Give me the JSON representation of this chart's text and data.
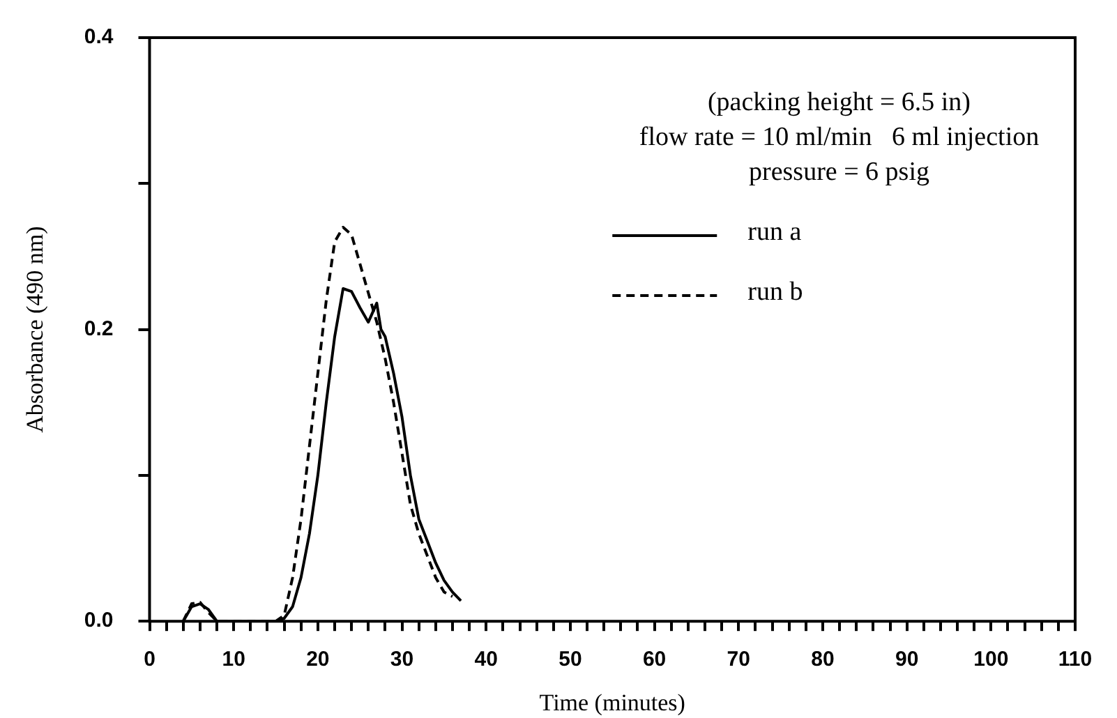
{
  "chart_data": {
    "type": "line",
    "xlabel": "Time (minutes)",
    "ylabel": "Absorbance (490 nm)",
    "annotations": [
      "(packing height = 6.5 in)",
      "flow rate = 10 ml/min   6 ml injection",
      "pressure = 6 psig"
    ],
    "xlim": [
      0,
      110
    ],
    "ylim": [
      0,
      0.4
    ],
    "xticks": [
      0,
      {
        "value": 2,
        "label": null
      },
      {
        "value": 4,
        "label": null
      },
      {
        "value": 6,
        "label": null
      },
      {
        "value": 8,
        "label": null
      },
      10,
      {
        "value": 12,
        "label": null
      },
      {
        "value": 14,
        "label": null
      },
      {
        "value": 16,
        "label": null
      },
      {
        "value": 18,
        "label": null
      },
      20,
      {
        "value": 22,
        "label": null
      },
      {
        "value": 24,
        "label": null
      },
      {
        "value": 26,
        "label": null
      },
      {
        "value": 28,
        "label": null
      },
      30,
      {
        "value": 32,
        "label": null
      },
      {
        "value": 34,
        "label": null
      },
      {
        "value": 36,
        "label": null
      },
      {
        "value": 38,
        "label": null
      },
      40,
      {
        "value": 42,
        "label": null
      },
      {
        "value": 44,
        "label": null
      },
      {
        "value": 46,
        "label": null
      },
      {
        "value": 48,
        "label": null
      },
      50,
      {
        "value": 52,
        "label": null
      },
      {
        "value": 54,
        "label": null
      },
      {
        "value": 56,
        "label": null
      },
      {
        "value": 58,
        "label": null
      },
      60,
      {
        "value": 62,
        "label": null
      },
      {
        "value": 64,
        "label": null
      },
      {
        "value": 66,
        "label": null
      },
      {
        "value": 68,
        "label": null
      },
      70,
      {
        "value": 72,
        "label": null
      },
      {
        "value": 74,
        "label": null
      },
      {
        "value": 76,
        "label": null
      },
      {
        "value": 78,
        "label": null
      },
      80,
      {
        "value": 82,
        "label": null
      },
      {
        "value": 84,
        "label": null
      },
      {
        "value": 86,
        "label": null
      },
      {
        "value": 88,
        "label": null
      },
      90,
      {
        "value": 92,
        "label": null
      },
      {
        "value": 94,
        "label": null
      },
      {
        "value": 96,
        "label": null
      },
      {
        "value": 98,
        "label": null
      },
      100,
      {
        "value": 102,
        "label": null
      },
      {
        "value": 104,
        "label": null
      },
      {
        "value": 106,
        "label": null
      },
      {
        "value": 108,
        "label": null
      },
      110
    ],
    "yticks": [
      {
        "value": 0,
        "label": "0.0"
      },
      {
        "value": 0.1,
        "label": null
      },
      {
        "value": 0.2,
        "label": "0.2"
      },
      {
        "value": 0.3,
        "label": null
      },
      {
        "value": 0.4,
        "label": "0.4"
      }
    ],
    "grid": false,
    "legend": "top right",
    "marker": "none",
    "series": [
      {
        "name": "run a",
        "color": "#000000",
        "line_style": "solid",
        "x": [
          4,
          5,
          6,
          7,
          8,
          15,
          16,
          17,
          18,
          19,
          20,
          21,
          22,
          23,
          24,
          25,
          26,
          27,
          27.5,
          28,
          29,
          30,
          31,
          32,
          33,
          34,
          35,
          36,
          37
        ],
        "values": [
          0,
          0.01,
          0.012,
          0.008,
          0,
          0,
          0.002,
          0.01,
          0.03,
          0.06,
          0.1,
          0.15,
          0.195,
          0.228,
          0.226,
          0.215,
          0.205,
          0.218,
          0.2,
          0.195,
          0.17,
          0.14,
          0.1,
          0.07,
          0.055,
          0.04,
          0.028,
          0.02,
          0.014
        ]
      },
      {
        "name": "run b",
        "color": "#000000",
        "line_style": "dashed",
        "x": [
          4,
          5,
          6,
          7,
          8,
          15,
          16,
          17,
          18,
          19,
          20,
          21,
          22,
          23,
          24,
          25,
          26,
          27,
          28,
          29,
          30,
          31,
          32,
          33,
          34,
          35,
          36
        ],
        "values": [
          0,
          0.012,
          0.013,
          0.006,
          0,
          0,
          0.004,
          0.03,
          0.07,
          0.12,
          0.17,
          0.22,
          0.26,
          0.27,
          0.265,
          0.245,
          0.225,
          0.205,
          0.18,
          0.15,
          0.115,
          0.08,
          0.06,
          0.045,
          0.03,
          0.02,
          0.017
        ]
      }
    ]
  }
}
